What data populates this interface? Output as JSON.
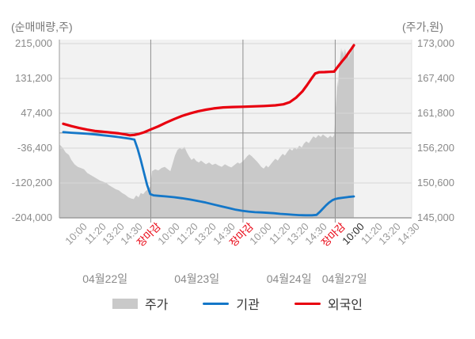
{
  "titles": {
    "left_axis_unit": "(순매매량,주)",
    "right_axis_unit": "(주가,원)"
  },
  "legend": {
    "items": [
      {
        "label": "주가",
        "type": "area",
        "color": "#c9c9c9"
      },
      {
        "label": "기관",
        "type": "line",
        "color": "#1477c8"
      },
      {
        "label": "외국인",
        "type": "line",
        "color": "#e8000f"
      }
    ]
  },
  "colors": {
    "plot_bg": "#f2f2f2",
    "grid_light": "#d6d6d6",
    "grid_dark": "#8f8f8f",
    "axis_line": "#9c9c9c",
    "right_edge": "#e2e2e2",
    "price_area": "#c9c9c9",
    "institution_line": "#1477c8",
    "foreigner_line": "#e8000f",
    "tick_text": "#999999",
    "tick_text_close": "#e8000f",
    "tick_text_current": "#2b2b2b"
  },
  "chart_data": {
    "type": "mixed",
    "left_axis": {
      "unit_label": "(순매매량,주)",
      "min": -204000,
      "max": 215000,
      "tick_labels": [
        "215,000",
        "131,200",
        "47,400",
        "-36,400",
        "-120,200",
        "-204,000"
      ]
    },
    "right_axis": {
      "unit_label": "(주가,원)",
      "min": 145000,
      "max": 173000,
      "tick_labels": [
        "173,000",
        "167,400",
        "161,800",
        "156,200",
        "150,600",
        "145,000"
      ]
    },
    "x_axis": {
      "tick_labels": [
        "10:00",
        "11:20",
        "13:20",
        "14:30",
        "장마감",
        "10:00",
        "11:20",
        "13:20",
        "14:30",
        "장마감",
        "10:00",
        "11:20",
        "13:20",
        "14:30",
        "장마감",
        "10:00",
        "11:20",
        "13:20",
        "14:30"
      ],
      "close_tick_indices": [
        4,
        9,
        14
      ],
      "current_tick_index": 15,
      "day_separator_tick_indices": [
        4,
        9,
        14
      ],
      "date_labels": [
        "04월22일",
        "04월23일",
        "04월24일",
        "04월27일"
      ]
    },
    "series": [
      {
        "name": "주가",
        "type": "area",
        "axis": "right",
        "points": [
          [
            0.0,
            156800
          ],
          [
            0.009,
            156300
          ],
          [
            0.018,
            155500
          ],
          [
            0.027,
            155100
          ],
          [
            0.034,
            154300
          ],
          [
            0.043,
            153600
          ],
          [
            0.052,
            153200
          ],
          [
            0.061,
            153000
          ],
          [
            0.07,
            152800
          ],
          [
            0.079,
            152200
          ],
          [
            0.088,
            151900
          ],
          [
            0.097,
            151600
          ],
          [
            0.106,
            151300
          ],
          [
            0.115,
            151000
          ],
          [
            0.124,
            150800
          ],
          [
            0.133,
            150600
          ],
          [
            0.142,
            150200
          ],
          [
            0.151,
            149900
          ],
          [
            0.16,
            149600
          ],
          [
            0.169,
            149400
          ],
          [
            0.178,
            149000
          ],
          [
            0.187,
            148700
          ],
          [
            0.196,
            148300
          ],
          [
            0.204,
            148100
          ],
          [
            0.211,
            148000
          ],
          [
            0.218,
            148600
          ],
          [
            0.225,
            148300
          ],
          [
            0.231,
            149000
          ],
          [
            0.238,
            148800
          ],
          [
            0.245,
            149300
          ],
          [
            0.252,
            149600
          ],
          [
            0.258,
            150000
          ],
          [
            0.263,
            152500
          ],
          [
            0.272,
            152800
          ],
          [
            0.281,
            152600
          ],
          [
            0.29,
            153000
          ],
          [
            0.299,
            153200
          ],
          [
            0.308,
            152800
          ],
          [
            0.315,
            152500
          ],
          [
            0.321,
            153600
          ],
          [
            0.328,
            155000
          ],
          [
            0.335,
            155900
          ],
          [
            0.342,
            156200
          ],
          [
            0.348,
            156000
          ],
          [
            0.355,
            156400
          ],
          [
            0.362,
            155500
          ],
          [
            0.369,
            154800
          ],
          [
            0.375,
            154300
          ],
          [
            0.382,
            154600
          ],
          [
            0.389,
            154100
          ],
          [
            0.396,
            153900
          ],
          [
            0.402,
            154200
          ],
          [
            0.409,
            153900
          ],
          [
            0.416,
            153600
          ],
          [
            0.425,
            153900
          ],
          [
            0.434,
            153500
          ],
          [
            0.443,
            153700
          ],
          [
            0.452,
            153400
          ],
          [
            0.461,
            153200
          ],
          [
            0.47,
            153600
          ],
          [
            0.479,
            153300
          ],
          [
            0.488,
            153100
          ],
          [
            0.497,
            153500
          ],
          [
            0.506,
            153900
          ],
          [
            0.512,
            153700
          ],
          [
            0.519,
            154000
          ],
          [
            0.526,
            154400
          ],
          [
            0.533,
            154900
          ],
          [
            0.539,
            155200
          ],
          [
            0.546,
            154900
          ],
          [
            0.553,
            154500
          ],
          [
            0.56,
            154100
          ],
          [
            0.566,
            153700
          ],
          [
            0.573,
            153200
          ],
          [
            0.58,
            152900
          ],
          [
            0.587,
            153400
          ],
          [
            0.593,
            153100
          ],
          [
            0.6,
            153600
          ],
          [
            0.607,
            154100
          ],
          [
            0.613,
            154500
          ],
          [
            0.62,
            154200
          ],
          [
            0.627,
            154800
          ],
          [
            0.634,
            155300
          ],
          [
            0.64,
            155000
          ],
          [
            0.647,
            155600
          ],
          [
            0.654,
            156100
          ],
          [
            0.661,
            155800
          ],
          [
            0.667,
            156300
          ],
          [
            0.674,
            156000
          ],
          [
            0.681,
            156600
          ],
          [
            0.688,
            156300
          ],
          [
            0.694,
            156900
          ],
          [
            0.701,
            157300
          ],
          [
            0.708,
            157000
          ],
          [
            0.715,
            157600
          ],
          [
            0.721,
            158100
          ],
          [
            0.728,
            157800
          ],
          [
            0.735,
            158300
          ],
          [
            0.742,
            158000
          ],
          [
            0.748,
            158400
          ],
          [
            0.755,
            158100
          ],
          [
            0.762,
            157800
          ],
          [
            0.769,
            158200
          ],
          [
            0.775,
            157900
          ],
          [
            0.78,
            158300
          ],
          [
            0.782,
            160000
          ],
          [
            0.784,
            162500
          ],
          [
            0.787,
            165000
          ],
          [
            0.789,
            167000
          ],
          [
            0.791,
            166000
          ],
          [
            0.793,
            168500
          ],
          [
            0.796,
            170000
          ],
          [
            0.798,
            171200
          ],
          [
            0.8,
            172300
          ],
          [
            0.802,
            171400
          ],
          [
            0.805,
            172000
          ],
          [
            0.807,
            170900
          ],
          [
            0.809,
            171600
          ],
          [
            0.811,
            172200
          ],
          [
            0.814,
            171000
          ],
          [
            0.816,
            171700
          ],
          [
            0.818,
            170800
          ],
          [
            0.82,
            171300
          ],
          [
            0.822,
            170600
          ],
          [
            0.825,
            171900
          ],
          [
            0.827,
            171100
          ],
          [
            0.829,
            172300
          ],
          [
            0.831,
            171700
          ],
          [
            0.834,
            172500
          ],
          [
            0.836,
            172800
          ]
        ]
      },
      {
        "name": "기관",
        "type": "line",
        "axis": "left",
        "points": [
          [
            0.011,
            2000
          ],
          [
            0.034,
            500
          ],
          [
            0.056,
            -500
          ],
          [
            0.079,
            -2000
          ],
          [
            0.101,
            -3500
          ],
          [
            0.124,
            -5500
          ],
          [
            0.146,
            -7500
          ],
          [
            0.169,
            -10000
          ],
          [
            0.187,
            -12000
          ],
          [
            0.202,
            -14000
          ],
          [
            0.213,
            -16000
          ],
          [
            0.222,
            -38000
          ],
          [
            0.231,
            -65000
          ],
          [
            0.24,
            -95000
          ],
          [
            0.249,
            -125000
          ],
          [
            0.258,
            -147000
          ],
          [
            0.267,
            -150000
          ],
          [
            0.281,
            -151000
          ],
          [
            0.303,
            -152500
          ],
          [
            0.326,
            -154500
          ],
          [
            0.348,
            -157000
          ],
          [
            0.371,
            -160000
          ],
          [
            0.393,
            -163500
          ],
          [
            0.416,
            -167500
          ],
          [
            0.438,
            -172000
          ],
          [
            0.461,
            -176500
          ],
          [
            0.483,
            -181000
          ],
          [
            0.501,
            -184500
          ],
          [
            0.519,
            -187000
          ],
          [
            0.537,
            -189000
          ],
          [
            0.555,
            -190500
          ],
          [
            0.573,
            -191000
          ],
          [
            0.591,
            -192000
          ],
          [
            0.609,
            -193000
          ],
          [
            0.627,
            -194500
          ],
          [
            0.645,
            -195500
          ],
          [
            0.663,
            -196500
          ],
          [
            0.681,
            -197500
          ],
          [
            0.699,
            -198000
          ],
          [
            0.717,
            -198000
          ],
          [
            0.73,
            -197000
          ],
          [
            0.739,
            -190000
          ],
          [
            0.748,
            -182000
          ],
          [
            0.757,
            -174000
          ],
          [
            0.766,
            -167000
          ],
          [
            0.775,
            -161500
          ],
          [
            0.782,
            -159000
          ],
          [
            0.793,
            -157000
          ],
          [
            0.807,
            -155500
          ],
          [
            0.82,
            -154000
          ],
          [
            0.836,
            -152500
          ]
        ]
      },
      {
        "name": "외국인",
        "type": "line",
        "axis": "left",
        "points": [
          [
            0.011,
            22000
          ],
          [
            0.034,
            16500
          ],
          [
            0.056,
            12000
          ],
          [
            0.079,
            8000
          ],
          [
            0.101,
            5000
          ],
          [
            0.124,
            3000
          ],
          [
            0.146,
            1000
          ],
          [
            0.169,
            -1000
          ],
          [
            0.187,
            -3500
          ],
          [
            0.2,
            -5500
          ],
          [
            0.213,
            -4500
          ],
          [
            0.227,
            -2000
          ],
          [
            0.24,
            1500
          ],
          [
            0.258,
            8000
          ],
          [
            0.281,
            16000
          ],
          [
            0.303,
            25000
          ],
          [
            0.326,
            33500
          ],
          [
            0.348,
            41000
          ],
          [
            0.371,
            47000
          ],
          [
            0.393,
            52000
          ],
          [
            0.416,
            56000
          ],
          [
            0.438,
            59000
          ],
          [
            0.465,
            61500
          ],
          [
            0.492,
            62500
          ],
          [
            0.519,
            63000
          ],
          [
            0.551,
            64000
          ],
          [
            0.582,
            65000
          ],
          [
            0.613,
            66500
          ],
          [
            0.636,
            69000
          ],
          [
            0.654,
            74000
          ],
          [
            0.672,
            85000
          ],
          [
            0.69,
            100000
          ],
          [
            0.703,
            115000
          ],
          [
            0.715,
            130000
          ],
          [
            0.726,
            143000
          ],
          [
            0.737,
            146000
          ],
          [
            0.753,
            146500
          ],
          [
            0.766,
            147000
          ],
          [
            0.78,
            147500
          ],
          [
            0.791,
            160000
          ],
          [
            0.802,
            172000
          ],
          [
            0.814,
            184000
          ],
          [
            0.822,
            194000
          ],
          [
            0.829,
            202000
          ],
          [
            0.836,
            211000
          ]
        ]
      }
    ]
  }
}
